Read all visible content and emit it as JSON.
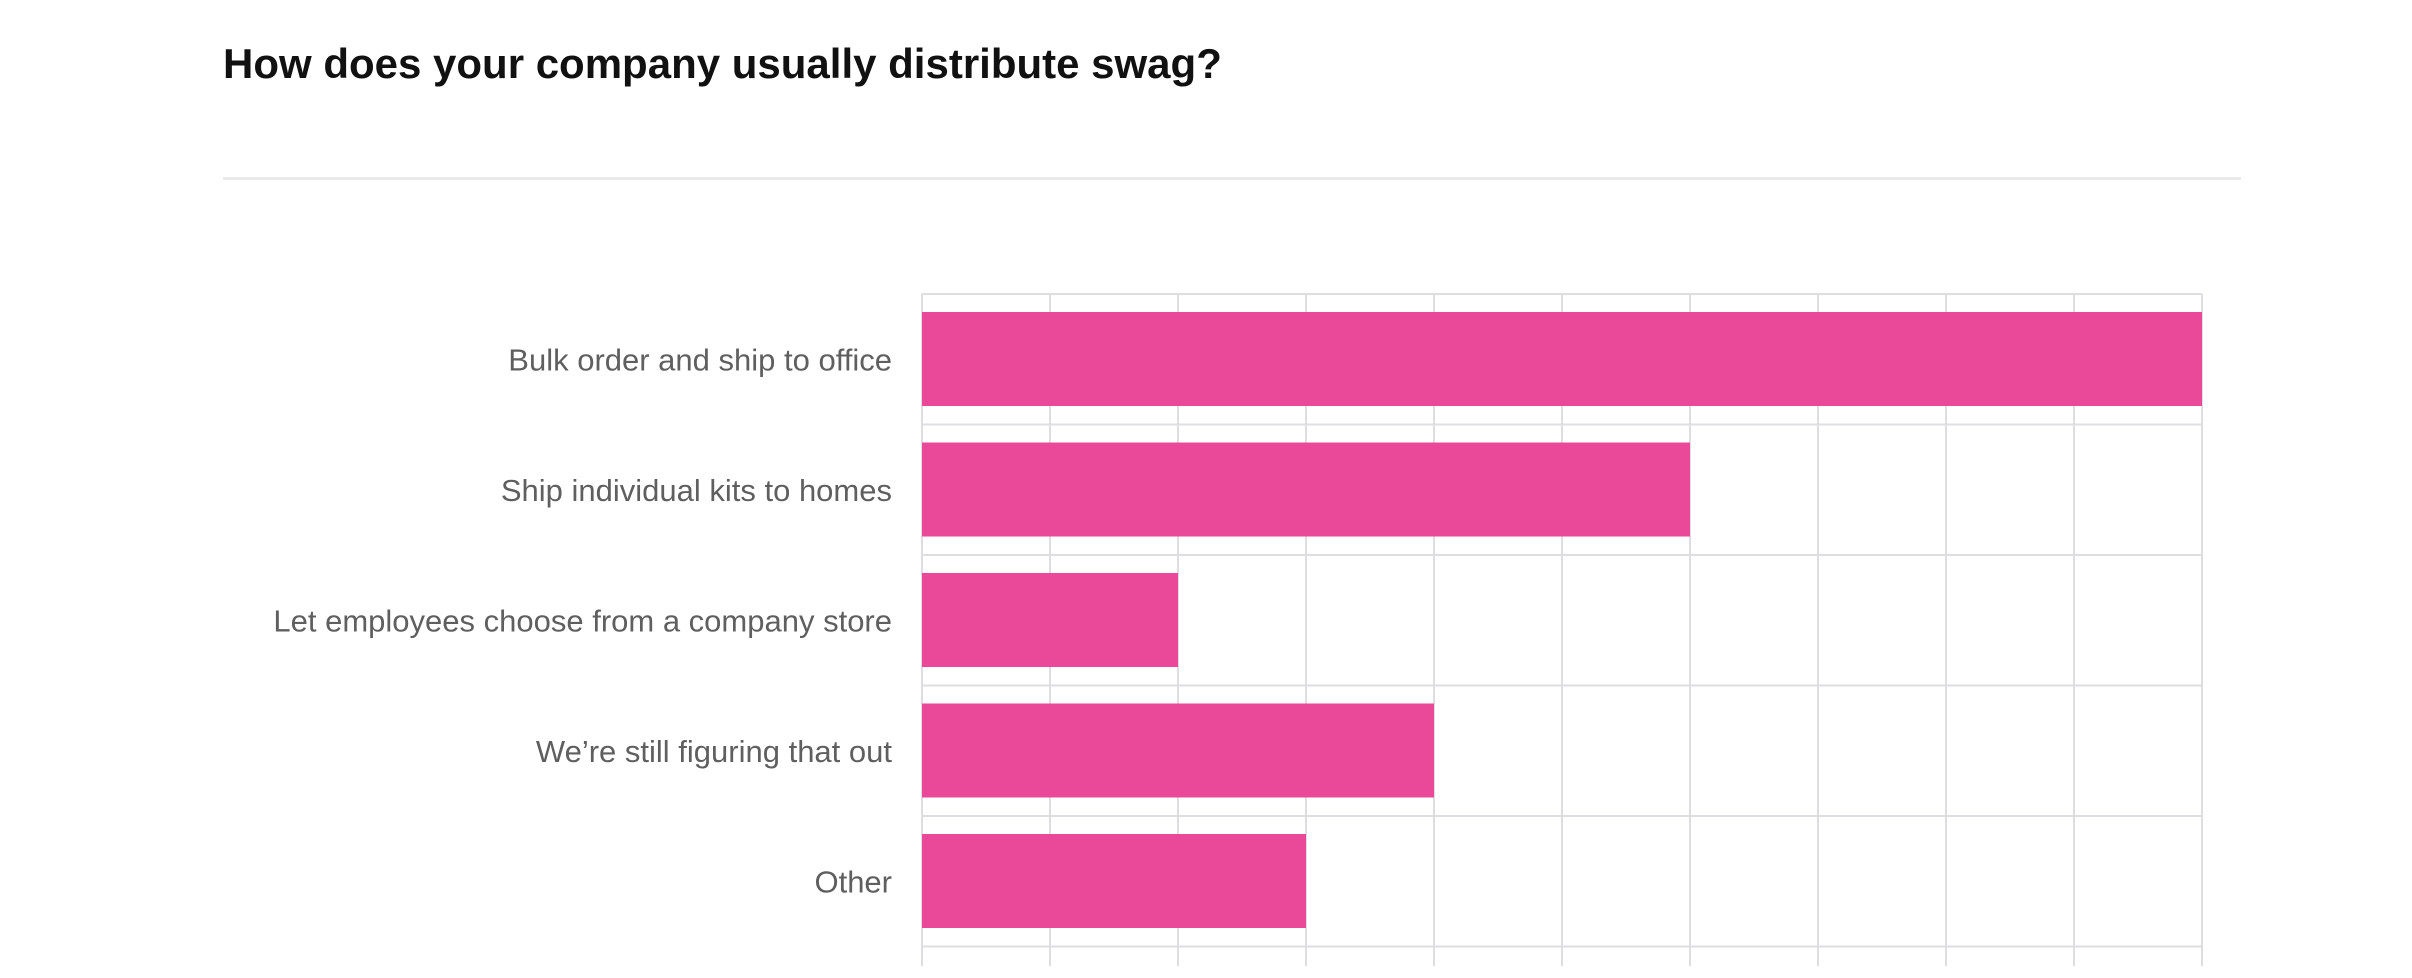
{
  "question": {
    "title": "How does your company usually distribute swag?"
  },
  "colors": {
    "bar": "#ea4899",
    "grid": "#dedee2",
    "divider": "#e9e9e9"
  },
  "chart_data": {
    "type": "bar",
    "orientation": "horizontal",
    "categories": [
      "Bulk order and ship to office",
      "Ship individual kits to homes",
      "Let employees choose from a company store",
      "We’re still figuring that out",
      "Other"
    ],
    "values": [
      10,
      6,
      2,
      4,
      3
    ],
    "xlim": [
      0,
      10
    ],
    "grid": true,
    "title": "",
    "xlabel": "",
    "ylabel": ""
  }
}
